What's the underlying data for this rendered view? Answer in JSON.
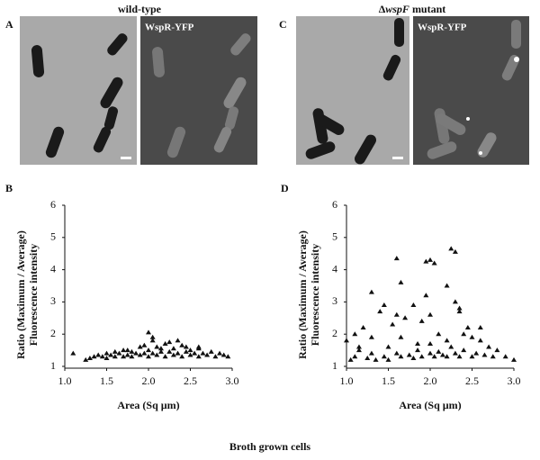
{
  "figure": {
    "panels": {
      "a": "A",
      "b": "B",
      "c": "C",
      "d": "D"
    },
    "wild_type_title": "wild-type",
    "mutant_title": {
      "prefix": "Δ",
      "italic": "wspF",
      "suffix": " mutant"
    },
    "image_label_left": "WspR-YFP",
    "image_label_right": "WspR-YFP",
    "caption": "Broth grown cells"
  },
  "chart_data": [
    {
      "type": "scatter",
      "ylabel": [
        "Ratio (Maximum / Average)",
        "Fluorescence intensity"
      ],
      "xlabel": "Area (Sq  µm)",
      "color": "#111111",
      "xlim": [
        1,
        3
      ],
      "ylim": [
        1,
        6
      ],
      "xticks": [
        {
          "value": 1,
          "label": "1.0"
        },
        1.5,
        {
          "value": 2,
          "label": "2.0"
        },
        2.5,
        {
          "value": 3,
          "label": "3.0"
        }
      ],
      "yticks": [
        1,
        2,
        3,
        4,
        5,
        6
      ],
      "x": [
        1.1,
        1.25,
        1.3,
        1.35,
        1.4,
        1.45,
        1.5,
        1.5,
        1.55,
        1.6,
        1.6,
        1.65,
        1.7,
        1.7,
        1.75,
        1.8,
        1.8,
        1.85,
        1.9,
        1.9,
        1.95,
        2.0,
        2.0,
        2.0,
        2.05,
        2.05,
        2.1,
        2.1,
        2.15,
        2.2,
        2.2,
        2.25,
        2.3,
        2.3,
        2.35,
        2.4,
        2.4,
        2.45,
        2.5,
        2.5,
        2.55,
        2.6,
        2.6,
        2.65,
        2.7,
        2.75,
        2.8,
        2.85,
        2.9,
        2.95,
        2.05,
        2.25,
        1.95,
        2.45,
        2.15,
        1.75,
        2.6,
        2.35
      ],
      "values": [
        1.4,
        1.2,
        1.25,
        1.3,
        1.35,
        1.3,
        1.4,
        1.25,
        1.35,
        1.3,
        1.45,
        1.4,
        1.3,
        1.5,
        1.35,
        1.45,
        1.3,
        1.4,
        1.35,
        1.6,
        1.4,
        2.05,
        1.3,
        1.5,
        1.4,
        1.8,
        1.35,
        1.6,
        1.45,
        1.3,
        1.7,
        1.45,
        1.35,
        1.55,
        1.4,
        1.3,
        1.65,
        1.45,
        1.35,
        1.5,
        1.4,
        1.3,
        1.55,
        1.4,
        1.35,
        1.45,
        1.3,
        1.4,
        1.35,
        1.3,
        1.9,
        1.75,
        1.65,
        1.6,
        1.55,
        1.5,
        1.6,
        1.8
      ]
    },
    {
      "type": "scatter",
      "ylabel": [
        "Ratio (Maximum / Average)",
        "Fluorescence intensity"
      ],
      "xlabel": "Area (Sq  µm)",
      "color": "#111111",
      "xlim": [
        1,
        3
      ],
      "ylim": [
        1,
        6
      ],
      "xticks": [
        {
          "value": 1,
          "label": "1.0"
        },
        1.5,
        {
          "value": 2,
          "label": "2.0"
        },
        2.5,
        {
          "value": 3,
          "label": "3.0"
        }
      ],
      "yticks": [
        1,
        2,
        3,
        4,
        5,
        6
      ],
      "x": [
        1.0,
        1.05,
        1.1,
        1.1,
        1.15,
        1.2,
        1.25,
        1.3,
        1.3,
        1.35,
        1.4,
        1.45,
        1.5,
        1.5,
        1.55,
        1.6,
        1.6,
        1.65,
        1.65,
        1.7,
        1.75,
        1.8,
        1.8,
        1.85,
        1.9,
        1.9,
        1.95,
        2.0,
        2.0,
        2.0,
        2.05,
        2.05,
        2.1,
        2.1,
        2.15,
        2.2,
        2.2,
        2.25,
        2.25,
        2.3,
        2.3,
        2.35,
        2.35,
        2.4,
        2.45,
        2.5,
        2.5,
        2.55,
        2.6,
        2.65,
        2.7,
        2.75,
        2.8,
        2.9,
        3.0,
        1.65,
        1.95,
        2.0,
        2.3,
        2.35,
        1.3,
        1.6,
        2.2,
        1.85,
        2.4,
        1.15,
        2.6,
        1.45
      ],
      "values": [
        1.8,
        1.2,
        2.0,
        1.3,
        1.5,
        2.2,
        1.25,
        3.3,
        1.4,
        1.2,
        2.7,
        1.3,
        1.6,
        1.2,
        2.3,
        4.35,
        1.4,
        1.9,
        1.3,
        2.5,
        1.35,
        2.9,
        1.25,
        1.5,
        1.3,
        2.4,
        4.25,
        4.3,
        1.4,
        1.7,
        4.2,
        1.3,
        2.0,
        1.45,
        1.35,
        3.5,
        1.3,
        4.65,
        1.6,
        4.55,
        1.4,
        2.8,
        1.3,
        1.5,
        2.2,
        1.3,
        1.9,
        1.4,
        2.2,
        1.35,
        1.6,
        1.3,
        1.5,
        1.3,
        1.2,
        3.6,
        3.2,
        2.6,
        3.0,
        2.7,
        1.9,
        2.6,
        1.8,
        1.7,
        2.0,
        1.6,
        1.8,
        2.9
      ]
    }
  ]
}
